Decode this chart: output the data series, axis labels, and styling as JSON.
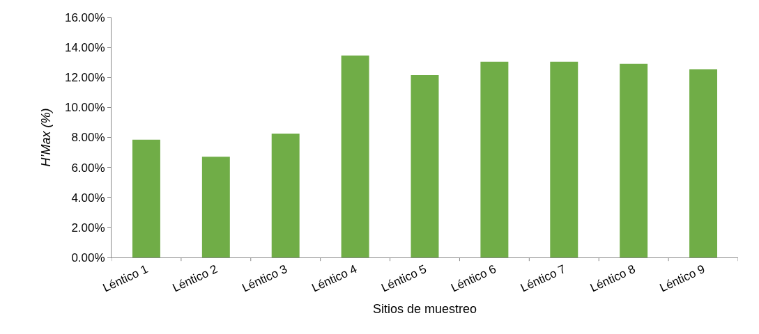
{
  "chart_data": {
    "type": "bar",
    "xlabel": "Sitios de muestreo",
    "ylabel": "H’Max (%)",
    "categories": [
      "Léntico 1",
      "Léntico 2",
      "Léntico 3",
      "Léntico 4",
      "Léntico 5",
      "Léntico 6",
      "Léntico 7",
      "Léntico 8",
      "Léntico 9"
    ],
    "values": [
      7.85,
      6.71,
      8.26,
      13.46,
      12.15,
      13.04,
      13.04,
      12.91,
      12.54
    ],
    "color": "#70ad47",
    "ylim": [
      0,
      16
    ],
    "yticks": [
      {
        "value": 0,
        "label": "0.00%"
      },
      {
        "value": 2,
        "label": "2.00%"
      },
      {
        "value": 4,
        "label": "4.00%"
      },
      {
        "value": 6,
        "label": "6.00%"
      },
      {
        "value": 8,
        "label": "8.00%"
      },
      {
        "value": 10,
        "label": "10.00%"
      },
      {
        "value": 12,
        "label": "12.00%"
      },
      {
        "value": 14,
        "label": "14.00%"
      },
      {
        "value": 16,
        "label": "16.00%"
      }
    ],
    "legend": false
  }
}
